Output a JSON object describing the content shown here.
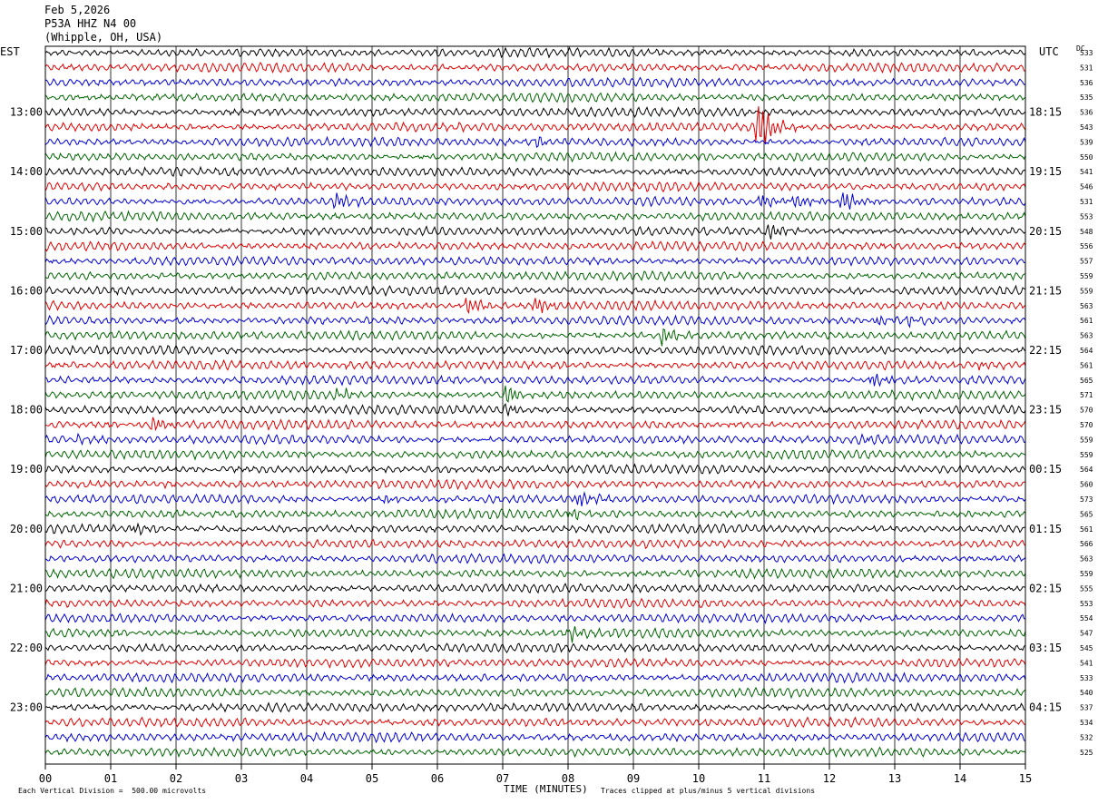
{
  "header": {
    "date": "Feb 5,2026",
    "station": "P53A HHZ N4 00",
    "location": "(Whipple, OH, USA)"
  },
  "left_zone": "EST",
  "right_zone": "UTC",
  "dc_label": "DC",
  "footer": {
    "scale_text": "Each Vertical Division =  500.00 microvolts",
    "clip_text": "Traces clipped at plus/minus 5 vertical divisions"
  },
  "chart_data": {
    "type": "line",
    "subtype": "helicorder",
    "xlabel": "TIME (MINUTES)",
    "x_ticks": [
      "00",
      "01",
      "02",
      "03",
      "04",
      "05",
      "06",
      "07",
      "08",
      "09",
      "10",
      "11",
      "12",
      "13",
      "14",
      "15"
    ],
    "xlim": [
      0,
      15
    ],
    "grid": true,
    "trace_count": 48,
    "minutes_per_trace": 15,
    "trace_colors": [
      "#000000",
      "#e00000",
      "#0000d0",
      "#006400"
    ],
    "left_hour_labels": [
      "13:00",
      "14:00",
      "15:00",
      "16:00",
      "17:00",
      "18:00",
      "19:00",
      "20:00",
      "21:00",
      "22:00",
      "23:00"
    ],
    "right_hour_labels": [
      "18:15",
      "19:15",
      "20:15",
      "21:15",
      "22:15",
      "23:15",
      "00:15",
      "01:15",
      "02:15",
      "03:15",
      "04:15"
    ],
    "hour_label_first_trace": 4,
    "dc_offsets": [
      533,
      531,
      536,
      535,
      536,
      543,
      539,
      550,
      541,
      546,
      531,
      553,
      548,
      556,
      557,
      559,
      559,
      563,
      561,
      563,
      564,
      561,
      565,
      571,
      570,
      570,
      559,
      559,
      564,
      560,
      573,
      565,
      561,
      566,
      563,
      559,
      555,
      553,
      554,
      547,
      545,
      541,
      533,
      540,
      537,
      534,
      532,
      525
    ],
    "events": [
      {
        "trace": 5,
        "minute": 10.9,
        "amp": 8.0
      },
      {
        "trace": 6,
        "minute": 7.5,
        "amp": 1.2
      },
      {
        "trace": 10,
        "minute": 4.45,
        "amp": 2.0
      },
      {
        "trace": 10,
        "minute": 10.95,
        "amp": 2.0
      },
      {
        "trace": 10,
        "minute": 11.45,
        "amp": 2.0
      },
      {
        "trace": 10,
        "minute": 12.2,
        "amp": 3.0
      },
      {
        "trace": 12,
        "minute": 11.05,
        "amp": 2.5
      },
      {
        "trace": 17,
        "minute": 6.45,
        "amp": 2.5
      },
      {
        "trace": 17,
        "minute": 7.5,
        "amp": 2.5
      },
      {
        "trace": 18,
        "minute": 12.7,
        "amp": 1.5
      },
      {
        "trace": 18,
        "minute": 13.2,
        "amp": 1.5
      },
      {
        "trace": 19,
        "minute": 9.45,
        "amp": 3.0
      },
      {
        "trace": 21,
        "minute": 14.3,
        "amp": 1.0
      },
      {
        "trace": 22,
        "minute": 12.65,
        "amp": 2.0
      },
      {
        "trace": 23,
        "minute": 4.45,
        "amp": 1.5
      },
      {
        "trace": 23,
        "minute": 7.05,
        "amp": 2.5
      },
      {
        "trace": 24,
        "minute": 7.05,
        "amp": 1.5
      },
      {
        "trace": 25,
        "minute": 1.65,
        "amp": 2.5
      },
      {
        "trace": 26,
        "minute": 12.5,
        "amp": 1.2
      },
      {
        "trace": 26,
        "minute": 0.5,
        "amp": 1.0
      },
      {
        "trace": 30,
        "minute": 5.2,
        "amp": 1.2
      },
      {
        "trace": 30,
        "minute": 8.15,
        "amp": 2.5
      },
      {
        "trace": 31,
        "minute": 8.05,
        "amp": 1.5
      },
      {
        "trace": 32,
        "minute": 1.35,
        "amp": 1.5
      },
      {
        "trace": 39,
        "minute": 8.05,
        "amp": 1.8
      }
    ]
  }
}
